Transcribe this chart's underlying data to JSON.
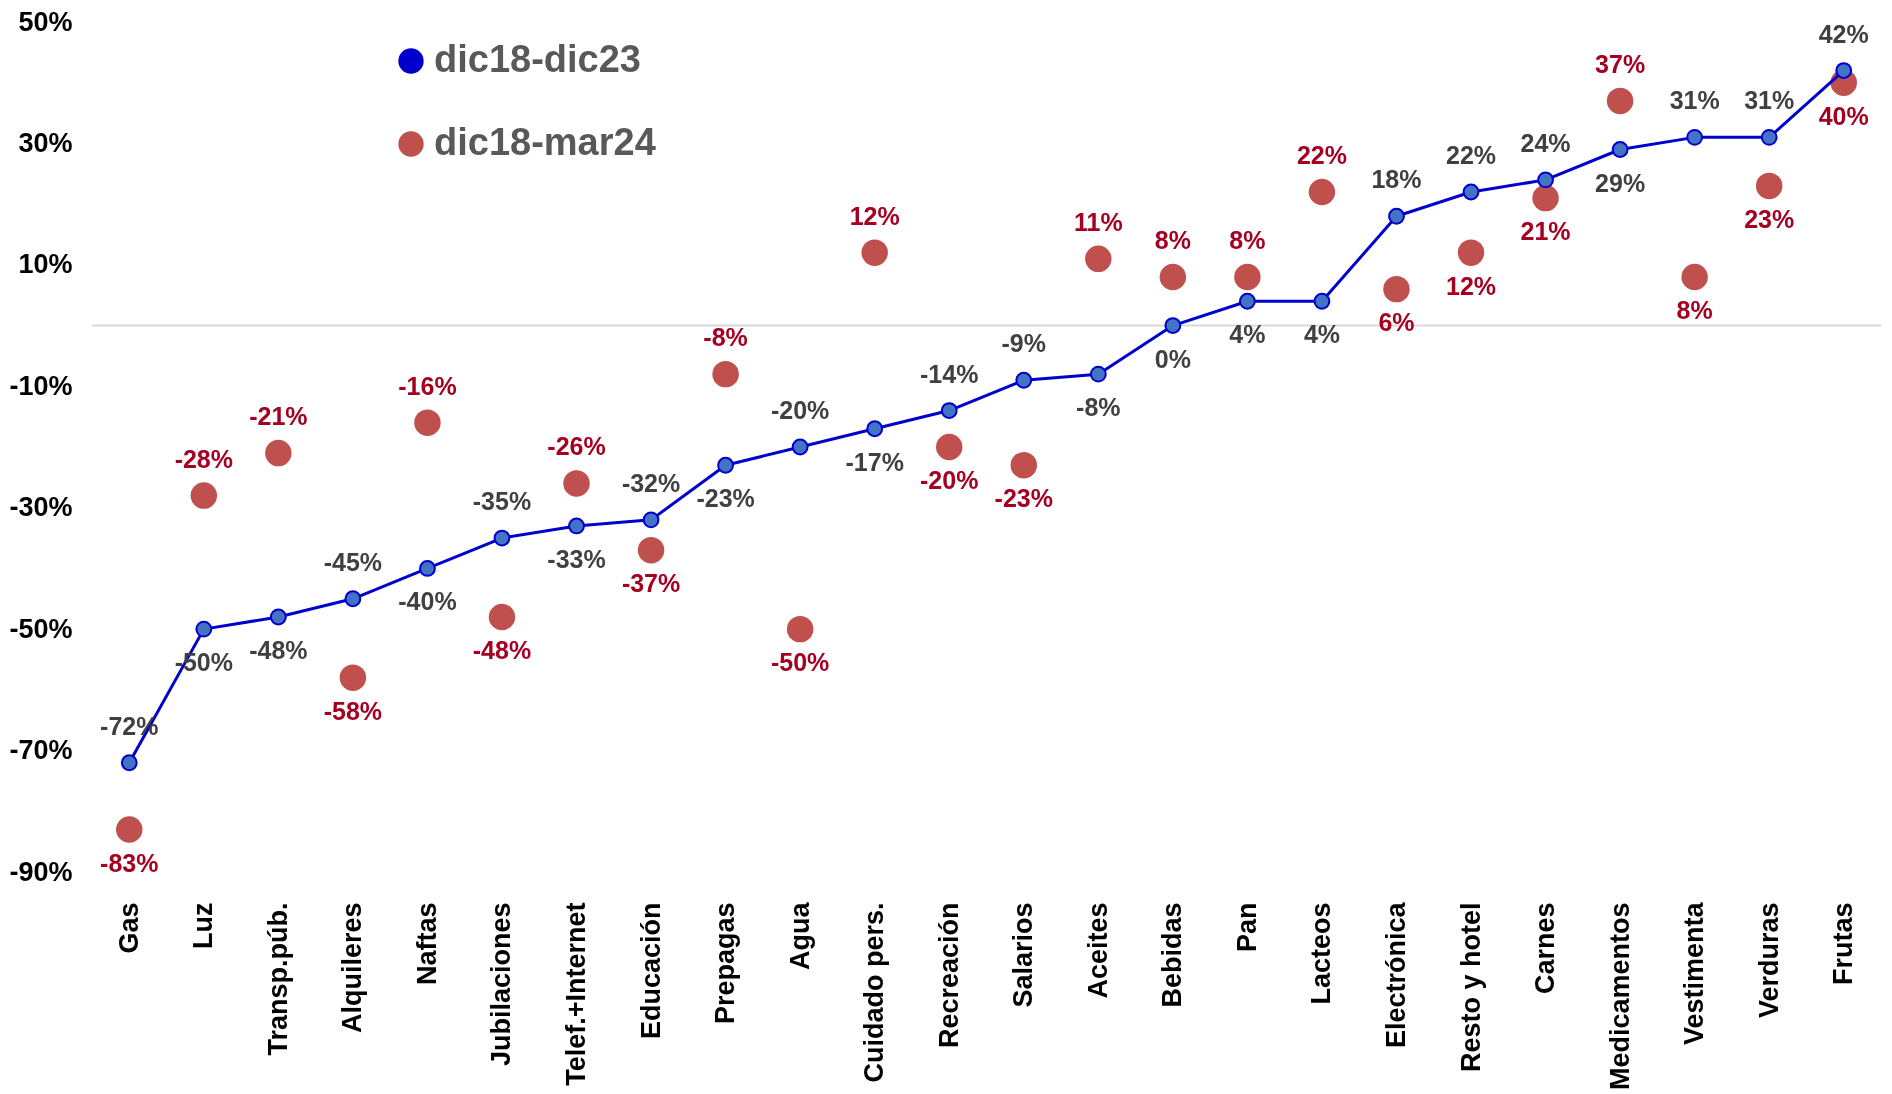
{
  "chart_data": {
    "type": "line",
    "categories": [
      "Gas",
      "Luz",
      "Transp.púb.",
      "Alquileres",
      "Naftas",
      "Jubilaciones",
      "Telef.+Internet",
      "Educación",
      "Prepagas",
      "Agua",
      "Cuidado pers.",
      "Recreación",
      "Salarios",
      "Aceites",
      "Bebidas",
      "Pan",
      "Lacteos",
      "Electrónica",
      "Resto y hotel",
      "Carnes",
      "Medicamentos",
      "Vestimenta",
      "Verduras",
      "Frutas"
    ],
    "series": [
      {
        "name": "dic18-dic23",
        "color": "#0000cc",
        "marker": "circle",
        "values": [
          -72,
          -50,
          -48,
          -45,
          -40,
          -35,
          -33,
          -32,
          -23,
          -20,
          -17,
          -14,
          -9,
          -8,
          0,
          4,
          4,
          18,
          22,
          24,
          29,
          31,
          31,
          42
        ],
        "value_labels": [
          "-72%",
          "-50%",
          "-48%",
          "-45%",
          "-40%",
          "-35%",
          "-33%",
          "-32%",
          "-23%",
          "-20%",
          "-17%",
          "-14%",
          "-9%",
          "-8%",
          "0%",
          "4%",
          "4%",
          "18%",
          "22%",
          "24%",
          "29%",
          "31%",
          "31%",
          "42%"
        ]
      },
      {
        "name": "dic18-mar24",
        "type": "scatter",
        "color": "#c0504d",
        "marker": "circle",
        "values": [
          -83,
          -28,
          -21,
          -58,
          -16,
          -48,
          -26,
          -37,
          -8,
          -50,
          12,
          -20,
          -23,
          11,
          8,
          8,
          22,
          6,
          12,
          21,
          37,
          8,
          23,
          40
        ],
        "value_labels": [
          "-83%",
          "-28%",
          "-21%",
          "-58%",
          "-16%",
          "-48%",
          "-26%",
          "-37%",
          "-8%",
          "-50%",
          "12%",
          "-20%",
          "-23%",
          "11%",
          "8%",
          "8%",
          "22%",
          "6%",
          "12%",
          "21%",
          "37%",
          "8%",
          "23%",
          "40%"
        ]
      }
    ],
    "ylim": [
      -90,
      50
    ],
    "yticks": [
      {
        "value": -90,
        "label": "-90%"
      },
      {
        "value": -70,
        "label": "-70%"
      },
      {
        "value": -50,
        "label": "-50%"
      },
      {
        "value": -30,
        "label": "-30%"
      },
      {
        "value": -10,
        "label": "-10%"
      },
      {
        "value": 10,
        "label": "10%"
      },
      {
        "value": 30,
        "label": "30%"
      },
      {
        "value": 50,
        "label": "50%"
      }
    ],
    "grid": false,
    "legend": "top left",
    "ref_lines": [
      {
        "axis": "y",
        "value": 0,
        "color": "#d9d9d9"
      }
    ]
  }
}
